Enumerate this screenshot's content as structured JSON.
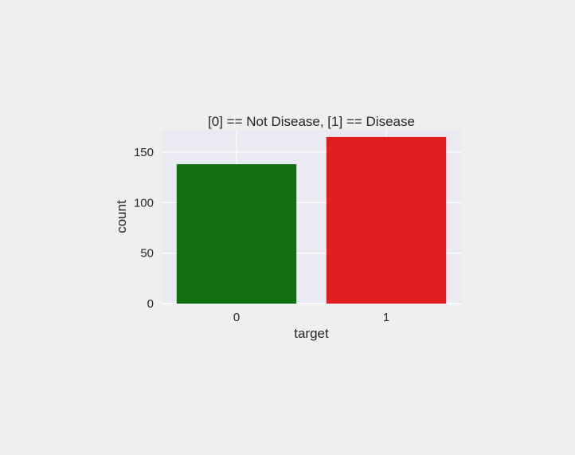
{
  "chart_data": {
    "type": "bar",
    "title": "[0] == Not Disease, [1] == Disease",
    "xlabel": "target",
    "ylabel": "count",
    "categories": [
      "0",
      "1"
    ],
    "values": [
      138,
      165
    ],
    "bar_colors": [
      "#107010",
      "#e02020"
    ],
    "ylim": [
      0,
      172
    ],
    "yticks": [
      0,
      50,
      100,
      150
    ],
    "grid": true,
    "background_color": "#eaeaf2",
    "gridline_color": "#ffffff"
  }
}
